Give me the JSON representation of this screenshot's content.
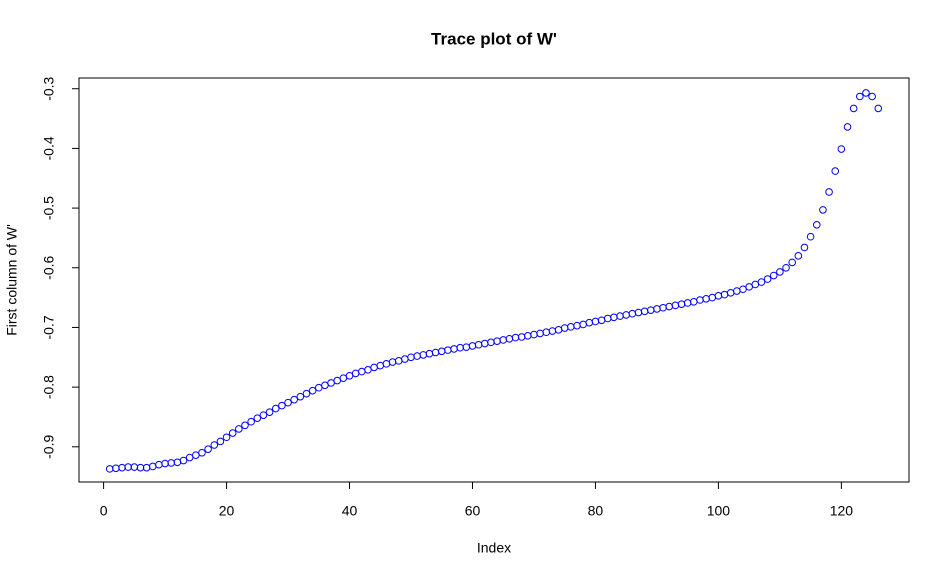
{
  "chart_data": {
    "type": "scatter",
    "title": "Trace plot of W'",
    "x_label": "Index",
    "y_label": "First column of W'",
    "color": "#0000ff",
    "x": [
      1,
      2,
      3,
      4,
      5,
      6,
      7,
      8,
      9,
      10,
      11,
      12,
      13,
      14,
      15,
      16,
      17,
      18,
      19,
      20,
      21,
      22,
      23,
      24,
      25,
      26,
      27,
      28,
      29,
      30,
      31,
      32,
      33,
      34,
      35,
      36,
      37,
      38,
      39,
      40,
      41,
      42,
      43,
      44,
      45,
      46,
      47,
      48,
      49,
      50,
      51,
      52,
      53,
      54,
      55,
      56,
      57,
      58,
      59,
      60,
      61,
      62,
      63,
      64,
      65,
      66,
      67,
      68,
      69,
      70,
      71,
      72,
      73,
      74,
      75,
      76,
      77,
      78,
      79,
      80,
      81,
      82,
      83,
      84,
      85,
      86,
      87,
      88,
      89,
      90,
      91,
      92,
      93,
      94,
      95,
      96,
      97,
      98,
      99,
      100,
      101,
      102,
      103,
      104,
      105,
      106,
      107,
      108,
      109,
      110,
      111,
      112,
      113,
      114,
      115,
      116,
      117,
      118,
      119,
      120,
      121,
      122,
      123,
      124,
      125,
      126
    ],
    "values": [
      -0.937,
      -0.936,
      -0.935,
      -0.934,
      -0.934,
      -0.935,
      -0.935,
      -0.933,
      -0.93,
      -0.928,
      -0.927,
      -0.926,
      -0.923,
      -0.918,
      -0.914,
      -0.91,
      -0.904,
      -0.897,
      -0.891,
      -0.884,
      -0.877,
      -0.87,
      -0.864,
      -0.858,
      -0.852,
      -0.847,
      -0.842,
      -0.836,
      -0.831,
      -0.826,
      -0.821,
      -0.816,
      -0.811,
      -0.806,
      -0.801,
      -0.797,
      -0.793,
      -0.789,
      -0.785,
      -0.781,
      -0.777,
      -0.774,
      -0.771,
      -0.767,
      -0.764,
      -0.761,
      -0.758,
      -0.756,
      -0.753,
      -0.75,
      -0.748,
      -0.746,
      -0.744,
      -0.742,
      -0.74,
      -0.738,
      -0.736,
      -0.734,
      -0.733,
      -0.731,
      -0.729,
      -0.727,
      -0.725,
      -0.723,
      -0.721,
      -0.719,
      -0.717,
      -0.716,
      -0.714,
      -0.712,
      -0.71,
      -0.708,
      -0.706,
      -0.704,
      -0.701,
      -0.699,
      -0.697,
      -0.695,
      -0.692,
      -0.69,
      -0.688,
      -0.685,
      -0.683,
      -0.681,
      -0.679,
      -0.677,
      -0.675,
      -0.673,
      -0.671,
      -0.669,
      -0.667,
      -0.665,
      -0.663,
      -0.661,
      -0.659,
      -0.657,
      -0.654,
      -0.652,
      -0.65,
      -0.647,
      -0.645,
      -0.642,
      -0.639,
      -0.636,
      -0.632,
      -0.628,
      -0.624,
      -0.619,
      -0.613,
      -0.607,
      -0.6,
      -0.591,
      -0.58,
      -0.566,
      -0.548,
      -0.528,
      -0.503,
      -0.473,
      -0.438,
      -0.401,
      -0.364,
      -0.333,
      -0.313,
      -0.307,
      -0.313,
      -0.333
    ],
    "xlim": [
      -4,
      131
    ],
    "xticks": [
      0,
      20,
      40,
      60,
      80,
      100,
      120
    ],
    "ylim": [
      -0.959,
      -0.282
    ],
    "yticks": [
      -0.9,
      -0.8,
      -0.7,
      -0.6,
      -0.5,
      -0.4,
      -0.3
    ]
  }
}
